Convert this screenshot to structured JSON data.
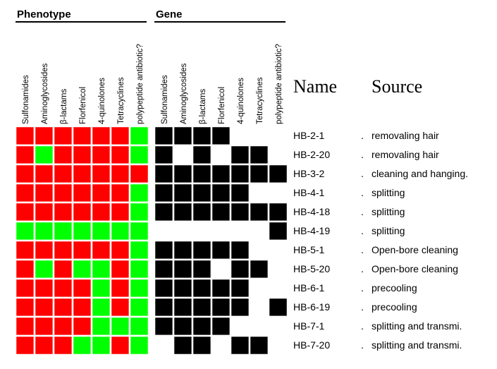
{
  "chart_data": {
    "type": "heatmap",
    "groups": [
      {
        "name": "Phenotype",
        "columns": [
          "Sulfonamides",
          "Aminoglycosides",
          "β-lactams",
          "Florfenicol",
          "4-quinolones",
          "Tetracyclines",
          "polypeptide antibiotic?"
        ],
        "colors": {
          "resistant": "#ff0000",
          "susceptible": "#00ff00"
        },
        "values": [
          [
            "resistant",
            "resistant",
            "resistant",
            "resistant",
            "resistant",
            "resistant",
            "susceptible"
          ],
          [
            "resistant",
            "susceptible",
            "resistant",
            "resistant",
            "resistant",
            "resistant",
            "susceptible"
          ],
          [
            "resistant",
            "resistant",
            "resistant",
            "resistant",
            "resistant",
            "resistant",
            "resistant"
          ],
          [
            "resistant",
            "resistant",
            "resistant",
            "resistant",
            "resistant",
            "resistant",
            "susceptible"
          ],
          [
            "resistant",
            "resistant",
            "resistant",
            "resistant",
            "resistant",
            "resistant",
            "susceptible"
          ],
          [
            "susceptible",
            "susceptible",
            "susceptible",
            "susceptible",
            "susceptible",
            "susceptible",
            "susceptible"
          ],
          [
            "resistant",
            "resistant",
            "resistant",
            "resistant",
            "resistant",
            "resistant",
            "susceptible"
          ],
          [
            "resistant",
            "susceptible",
            "resistant",
            "susceptible",
            "susceptible",
            "resistant",
            "susceptible"
          ],
          [
            "resistant",
            "resistant",
            "resistant",
            "resistant",
            "susceptible",
            "resistant",
            "susceptible"
          ],
          [
            "resistant",
            "resistant",
            "resistant",
            "resistant",
            "susceptible",
            "resistant",
            "susceptible"
          ],
          [
            "resistant",
            "resistant",
            "resistant",
            "resistant",
            "susceptible",
            "susceptible",
            "susceptible"
          ],
          [
            "resistant",
            "resistant",
            "resistant",
            "susceptible",
            "susceptible",
            "resistant",
            "susceptible"
          ]
        ]
      },
      {
        "name": "Gene",
        "columns": [
          "Sulfonamides",
          "Aminoglycosides",
          "β-lactams",
          "Florfenicol",
          "4-quinolones",
          "Tetracyclines",
          "polypeptide antibiotic?"
        ],
        "colors": {
          "present": "#000000",
          "absent": "#ffffff"
        },
        "values": [
          [
            1,
            1,
            1,
            1,
            0,
            0,
            0
          ],
          [
            1,
            0,
            1,
            0,
            1,
            1,
            0
          ],
          [
            1,
            1,
            1,
            1,
            1,
            1,
            1
          ],
          [
            1,
            1,
            1,
            1,
            1,
            0,
            0
          ],
          [
            1,
            1,
            1,
            1,
            1,
            1,
            1
          ],
          [
            0,
            0,
            0,
            0,
            0,
            0,
            1
          ],
          [
            1,
            1,
            1,
            1,
            1,
            0,
            0
          ],
          [
            1,
            1,
            1,
            0,
            1,
            1,
            0
          ],
          [
            1,
            1,
            1,
            1,
            1,
            0,
            0
          ],
          [
            1,
            1,
            1,
            1,
            1,
            0,
            1
          ],
          [
            1,
            1,
            1,
            1,
            0,
            0,
            0
          ],
          [
            0,
            1,
            1,
            0,
            1,
            1,
            0
          ]
        ]
      }
    ],
    "name_header": "Name",
    "source_header": "Source",
    "rows": [
      {
        "name": "HB-2-1",
        "source": "removaling hair"
      },
      {
        "name": "HB-2-20",
        "source": "removaling hair"
      },
      {
        "name": "HB-3-2",
        "source": "cleaning and hanging."
      },
      {
        "name": "HB-4-1",
        "source": "splitting"
      },
      {
        "name": "HB-4-18",
        "source": "splitting"
      },
      {
        "name": "HB-4-19",
        "source": "splitting"
      },
      {
        "name": "HB-5-1",
        "source": "Open-bore cleaning"
      },
      {
        "name": "HB-5-20",
        "source": "Open-bore cleaning"
      },
      {
        "name": "HB-6-1",
        "source": "precooling"
      },
      {
        "name": "HB-6-19",
        "source": "precooling"
      },
      {
        "name": "HB-7-1",
        "source": "splitting and transmi."
      },
      {
        "name": "HB-7-20",
        "source": "splitting and transmi."
      }
    ],
    "source_marker": "."
  }
}
